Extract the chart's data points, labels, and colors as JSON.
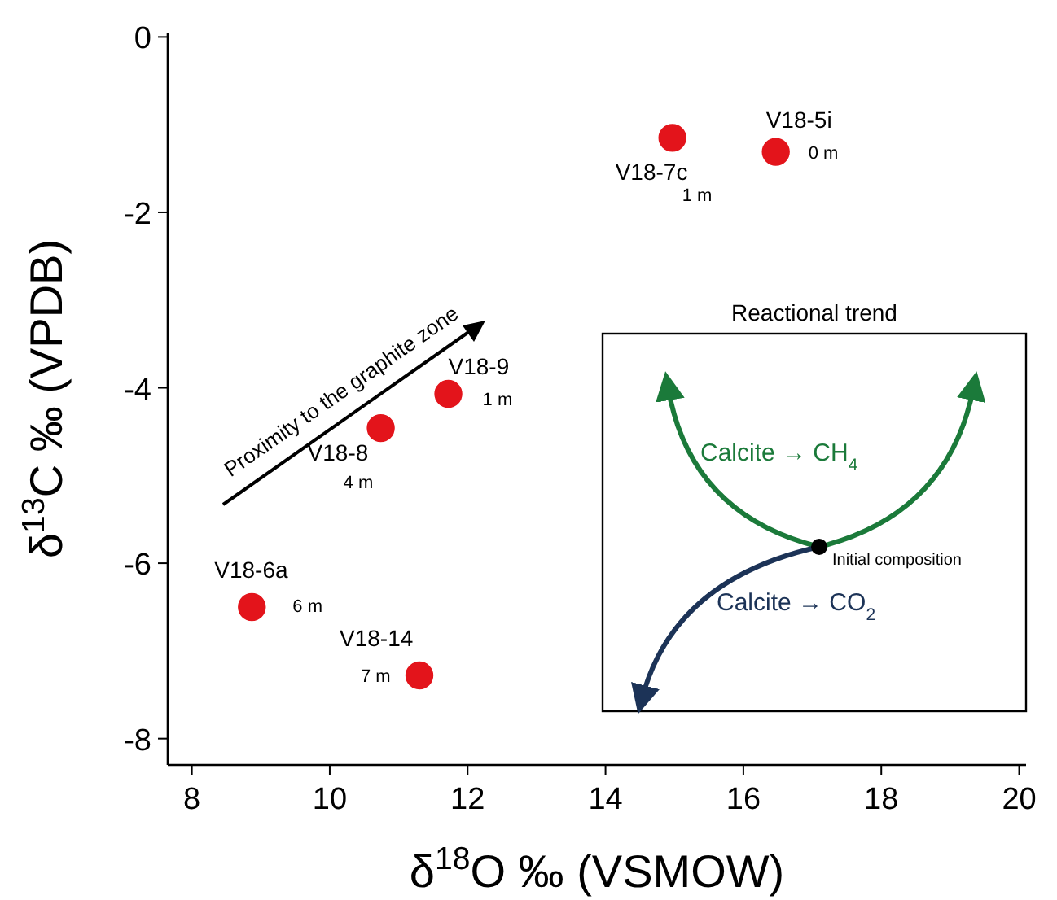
{
  "chart_data": {
    "type": "scatter",
    "xlabel": "δ$^{18}$O ‰ (VSMOW)",
    "ylabel": "δ$^{13}$C ‰ (VPDB)",
    "xlim": [
      7.65,
      20.1
    ],
    "ylim": [
      -8.3,
      0.05
    ],
    "xticks": [
      8,
      10,
      12,
      14,
      16,
      18,
      20
    ],
    "yticks": [
      0,
      -2,
      -4,
      -6,
      -8
    ],
    "grid": false,
    "marker": "circle",
    "series": [
      {
        "color": "#e3141b",
        "x": [
          14.97,
          16.47,
          11.72,
          10.74,
          8.87,
          11.3
        ],
        "values": [
          -1.15,
          -1.31,
          -4.07,
          -4.46,
          -6.5,
          -7.28
        ]
      }
    ],
    "annotations": [
      {
        "text": "V18-7c",
        "x": 14.97,
        "y": -1.15
      },
      {
        "text": "1 m",
        "x": 14.97,
        "y": -1.15
      },
      {
        "text": "V18-5i",
        "x": 16.47,
        "y": -1.31
      },
      {
        "text": "0 m",
        "x": 16.47,
        "y": -1.31
      },
      {
        "text": "V18-9",
        "x": 11.72,
        "y": -4.07
      },
      {
        "text": "1 m",
        "x": 11.72,
        "y": -4.07
      },
      {
        "text": "V18-8",
        "x": 10.74,
        "y": -4.46
      },
      {
        "text": "4 m",
        "x": 10.74,
        "y": -4.46
      },
      {
        "text": "V18-6a",
        "x": 8.87,
        "y": -6.5
      },
      {
        "text": "6 m",
        "x": 8.87,
        "y": -6.5
      },
      {
        "text": "V18-14",
        "x": 11.3,
        "y": -7.28
      },
      {
        "text": "7 m",
        "x": 11.3,
        "y": -7.28
      },
      "Proximity to the graphite zone",
      "Reactional trend",
      "Calcite → CH$_{4}$",
      "Initial composition",
      "Calcite → CO$_{2}$"
    ]
  }
}
